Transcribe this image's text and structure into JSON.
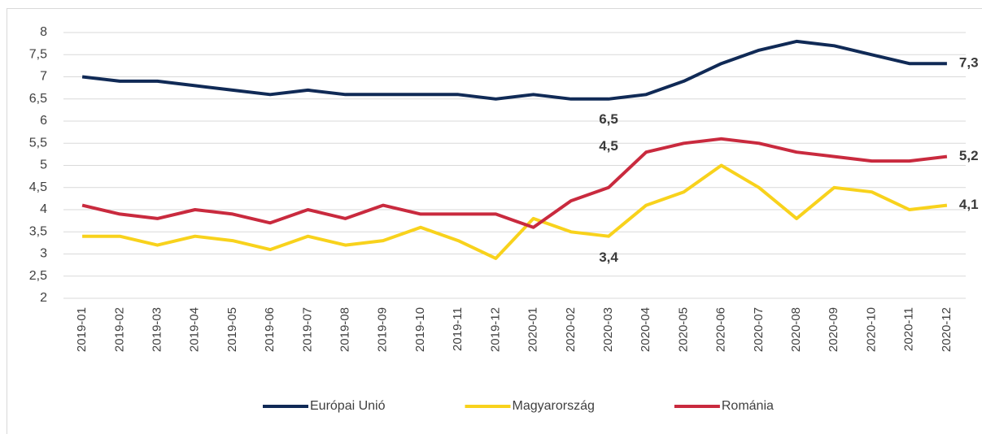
{
  "chart_data": {
    "type": "line",
    "categories": [
      "2019-01",
      "2019-02",
      "2019-03",
      "2019-04",
      "2019-05",
      "2019-06",
      "2019-07",
      "2019-08",
      "2019-09",
      "2019-10",
      "2019-11",
      "2019-12",
      "2020-01",
      "2020-02",
      "2020-03",
      "2020-04",
      "2020-05",
      "2020-06",
      "2020-07",
      "2020-08",
      "2020-09",
      "2020-10",
      "2020-11",
      "2020-12"
    ],
    "series": [
      {
        "name": "Európai Unió",
        "color": "#102a56",
        "values": [
          7.0,
          6.9,
          6.9,
          6.8,
          6.7,
          6.6,
          6.7,
          6.6,
          6.6,
          6.6,
          6.6,
          6.5,
          6.6,
          6.5,
          6.5,
          6.6,
          6.9,
          7.3,
          7.6,
          7.8,
          7.7,
          7.5,
          7.3,
          7.3
        ],
        "value_labels": [
          null,
          null,
          null,
          null,
          null,
          null,
          null,
          null,
          null,
          null,
          null,
          null,
          null,
          null,
          "6,5",
          null,
          null,
          null,
          null,
          null,
          null,
          null,
          null,
          "7,3"
        ]
      },
      {
        "name": "Magyarország",
        "color": "#f8d21c",
        "values": [
          3.4,
          3.4,
          3.2,
          3.4,
          3.3,
          3.1,
          3.4,
          3.2,
          3.3,
          3.6,
          3.3,
          2.9,
          3.8,
          3.5,
          3.4,
          4.1,
          4.4,
          5.0,
          4.5,
          3.8,
          4.5,
          4.4,
          4.0,
          4.1
        ],
        "value_labels": [
          null,
          null,
          null,
          null,
          null,
          null,
          null,
          null,
          null,
          null,
          null,
          null,
          null,
          null,
          "3,4",
          null,
          null,
          null,
          null,
          null,
          null,
          null,
          null,
          "4,1"
        ]
      },
      {
        "name": "Románia",
        "color": "#c92a3e",
        "values": [
          4.1,
          3.9,
          3.8,
          4.0,
          3.9,
          3.7,
          4.0,
          3.8,
          4.1,
          3.9,
          3.9,
          3.9,
          3.6,
          4.2,
          4.5,
          5.3,
          5.5,
          5.6,
          5.5,
          5.3,
          5.2,
          5.1,
          5.1,
          5.2
        ],
        "value_labels": [
          null,
          null,
          null,
          null,
          null,
          null,
          null,
          null,
          null,
          null,
          null,
          null,
          null,
          null,
          "4,5",
          null,
          null,
          null,
          null,
          null,
          null,
          null,
          null,
          "5,2"
        ]
      }
    ],
    "ylim": [
      2,
      8
    ],
    "yticks": [
      2,
      {
        "value": 2.5,
        "label": "2,5"
      },
      3,
      {
        "value": 3.5,
        "label": "3,5"
      },
      4,
      {
        "value": 4.5,
        "label": "4,5"
      },
      5,
      {
        "value": 5.5,
        "label": "5,5"
      },
      6,
      {
        "value": 6.5,
        "label": "6,5"
      },
      7,
      {
        "value": 7.5,
        "label": "7,5"
      },
      8
    ],
    "grid": true,
    "legend": "bottom"
  }
}
